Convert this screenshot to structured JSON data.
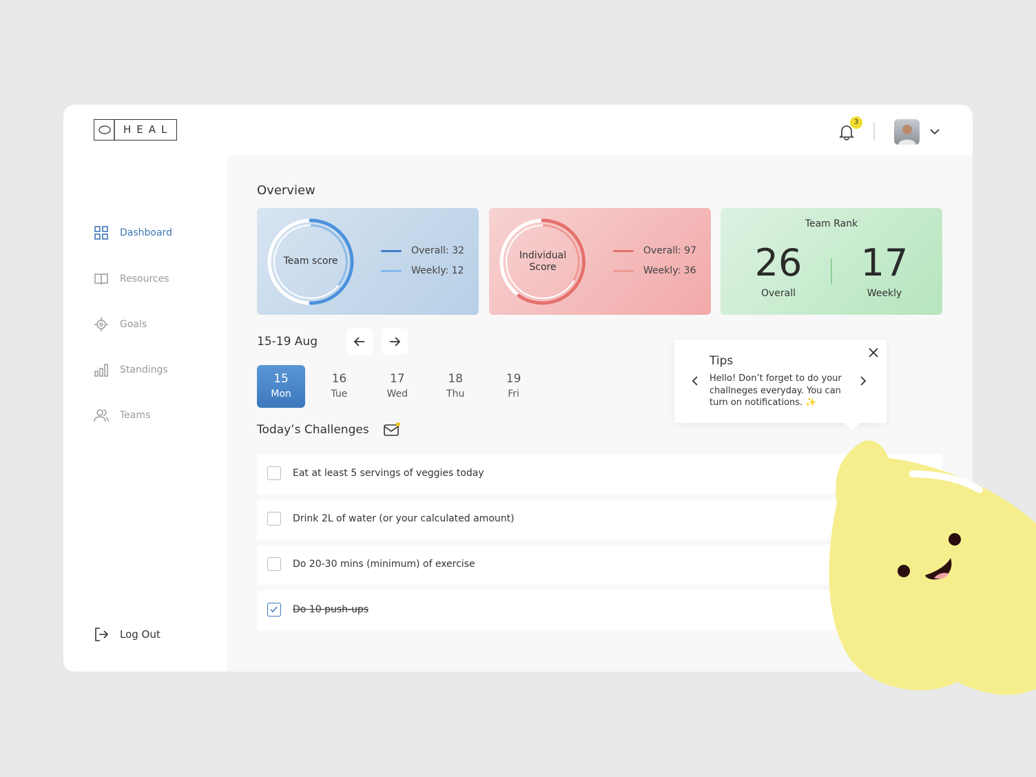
{
  "header": {
    "logo": "HEAL",
    "notification_count": 3
  },
  "nav": {
    "items": [
      "Dashboard",
      "Resources",
      "Goals",
      "Standings",
      "Teams"
    ],
    "logout": "Log Out",
    "active_index": 0
  },
  "overview": {
    "title": "Overview",
    "team_score": {
      "label": "Team score",
      "overall": "Overall: 32",
      "weekly": "Weekly: 12"
    },
    "individual_score": {
      "label": "Individual Score",
      "overall": "Overall: 97",
      "weekly": "Weekly: 36"
    },
    "team_rank": {
      "title": "Team Rank",
      "overall_value": 26,
      "overall_label": "Overall",
      "weekly_value": 17,
      "weekly_label": "Weekly"
    }
  },
  "calendar": {
    "range": "15-19 Aug",
    "selected_index": 0,
    "days": [
      {
        "date": 15,
        "day": "Mon"
      },
      {
        "date": 16,
        "day": "Tue"
      },
      {
        "date": 17,
        "day": "Wed"
      },
      {
        "date": 18,
        "day": "Thu"
      },
      {
        "date": 19,
        "day": "Fri"
      }
    ]
  },
  "challenges": {
    "title": "Today’s Challenges",
    "items": [
      {
        "text": "Eat at least 5 servings of veggies today",
        "done": false
      },
      {
        "text": "Drink 2L of water (or your calculated amount)",
        "done": false
      },
      {
        "text": "Do 20-30 mins (minimum) of exercise",
        "done": false
      },
      {
        "text": "Do 10 push-ups",
        "done": true
      }
    ]
  },
  "tips": {
    "title": "Tips",
    "text": "Hello! Don’t forget to do your challneges everyday. You can turn on notifications. ✨"
  }
}
